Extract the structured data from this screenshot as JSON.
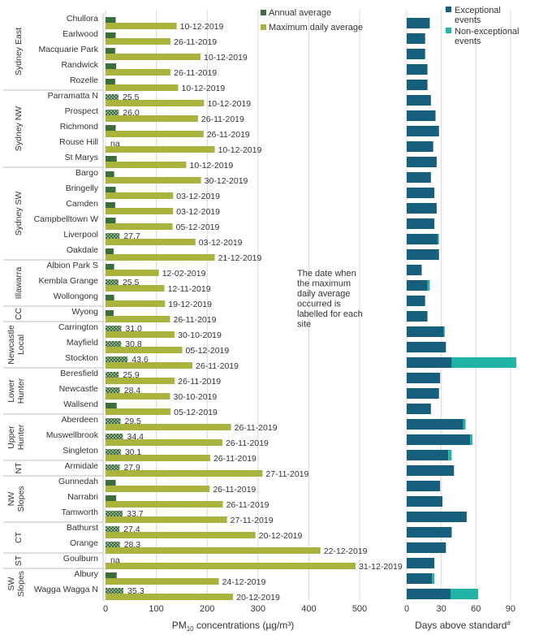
{
  "chart_data": [
    {
      "type": "bar",
      "orientation": "horizontal",
      "xlabel_main": "PM",
      "xlabel_sub": "10",
      "xlabel_rest": " concentrations (µg/m³)",
      "xlim": [
        0,
        500
      ],
      "xticks": [
        0,
        100,
        200,
        300,
        400,
        500
      ],
      "legend": [
        "Annual average",
        "Maximum daily average"
      ],
      "annotation": [
        "The date when",
        "the maximum",
        "daily average",
        "occurred is",
        "labelled for each",
        "site"
      ],
      "colors": {
        "annual": "#3c6e3c",
        "annual_pattern_fg": "#c8d8c8",
        "max": "#aab43c",
        "grid": "#d9d9d9",
        "text": "#333333"
      },
      "sites": [
        {
          "name": "Chullora",
          "annual": 20,
          "annual_label": "",
          "max": 140,
          "date": "10-12-2019"
        },
        {
          "name": "Earlwood",
          "annual": 20,
          "annual_label": "",
          "max": 128,
          "date": "26-11-2019"
        },
        {
          "name": "Macquarie Park",
          "annual": 19,
          "annual_label": "",
          "max": 187,
          "date": "10-12-2019"
        },
        {
          "name": "Randwick",
          "annual": 21,
          "annual_label": "",
          "max": 128,
          "date": "26-11-2019"
        },
        {
          "name": "Rozelle",
          "annual": 19,
          "annual_label": "",
          "max": 143,
          "date": "10-12-2019"
        },
        {
          "name": "Parramatta N",
          "annual": 25.5,
          "annual_label": "25.5",
          "max": 194,
          "date": "10-12-2019"
        },
        {
          "name": "Prospect",
          "annual": 26.0,
          "annual_label": "26.0",
          "max": 182,
          "date": "26-11-2019"
        },
        {
          "name": "Richmond",
          "annual": 20,
          "annual_label": "",
          "max": 193,
          "date": "26-11-2019"
        },
        {
          "name": "Rouse Hill",
          "annual": null,
          "annual_label": "na",
          "max": 215,
          "date": "10-12-2019"
        },
        {
          "name": "St Marys",
          "annual": 22,
          "annual_label": "",
          "max": 159,
          "date": "10-12-2019"
        },
        {
          "name": "Bargo",
          "annual": 17,
          "annual_label": "",
          "max": 188,
          "date": "30-12-2019"
        },
        {
          "name": "Bringelly",
          "annual": 20,
          "annual_label": "",
          "max": 133,
          "date": "03-12-2019"
        },
        {
          "name": "Camden",
          "annual": 19,
          "annual_label": "",
          "max": 133,
          "date": "03-12-2019"
        },
        {
          "name": "Campbelltown W",
          "annual": 20,
          "annual_label": "",
          "max": 132,
          "date": "05-12-2019"
        },
        {
          "name": "Liverpool",
          "annual": 27.7,
          "annual_label": "27.7",
          "max": 177,
          "date": "03-12-2019"
        },
        {
          "name": "Oakdale",
          "annual": 16,
          "annual_label": "",
          "max": 215,
          "date": "21-12-2019"
        },
        {
          "name": "Albion Park S",
          "annual": 17,
          "annual_label": "",
          "max": 105,
          "date": "12-02-2019"
        },
        {
          "name": "Kembla Grange",
          "annual": 25.5,
          "annual_label": "25.5",
          "max": 116,
          "date": "12-11-2019"
        },
        {
          "name": "Wollongong",
          "annual": 17,
          "annual_label": "",
          "max": 117,
          "date": "19-12-2019"
        },
        {
          "name": "Wyong",
          "annual": 16,
          "annual_label": "",
          "max": 127,
          "date": "26-11-2019"
        },
        {
          "name": "Carrington",
          "annual": 31.0,
          "annual_label": "31.0",
          "max": 136,
          "date": "30-10-2019"
        },
        {
          "name": "Mayfield",
          "annual": 30.8,
          "annual_label": "30.8",
          "max": 151,
          "date": "05-12-2019"
        },
        {
          "name": "Stockton",
          "annual": 43.6,
          "annual_label": "43.6",
          "max": 171,
          "date": "26-11-2019"
        },
        {
          "name": "Beresfield",
          "annual": 25.9,
          "annual_label": "25.9",
          "max": 136,
          "date": "26-11-2019"
        },
        {
          "name": "Newcastle",
          "annual": 28.4,
          "annual_label": "28.4",
          "max": 127,
          "date": "30-10-2019"
        },
        {
          "name": "Wallsend",
          "annual": 22,
          "annual_label": "",
          "max": 128,
          "date": "05-12-2019"
        },
        {
          "name": "Aberdeen",
          "annual": 29.5,
          "annual_label": "29.5",
          "max": 247,
          "date": "26-11-2019"
        },
        {
          "name": "Muswellbrook",
          "annual": 34.4,
          "annual_label": "34.4",
          "max": 230,
          "date": "26-11-2019"
        },
        {
          "name": "Singleton",
          "annual": 30.1,
          "annual_label": "30.1",
          "max": 206,
          "date": "26-11-2019"
        },
        {
          "name": "Armidale",
          "annual": 27.9,
          "annual_label": "27.9",
          "max": 309,
          "date": "27-11-2019"
        },
        {
          "name": "Gunnedah",
          "annual": 20,
          "annual_label": "",
          "max": 205,
          "date": "26-11-2019"
        },
        {
          "name": "Narrabri",
          "annual": 21,
          "annual_label": "",
          "max": 231,
          "date": "26-11-2019"
        },
        {
          "name": "Tamworth",
          "annual": 33.7,
          "annual_label": "33.7",
          "max": 239,
          "date": "27-11-2019"
        },
        {
          "name": "Bathurst",
          "annual": 27.4,
          "annual_label": "27.4",
          "max": 295,
          "date": "20-12-2019"
        },
        {
          "name": "Orange",
          "annual": 28.3,
          "annual_label": "28.3",
          "max": 423,
          "date": "22-12-2019"
        },
        {
          "name": "Goulburn",
          "annual": null,
          "annual_label": "na",
          "max": 492,
          "date": "31-12-2019"
        },
        {
          "name": "Albury",
          "annual": 22,
          "annual_label": "",
          "max": 223,
          "date": "24-12-2019"
        },
        {
          "name": "Wagga Wagga N",
          "annual": 35.3,
          "annual_label": "35.3",
          "max": 251,
          "date": "20-12-2019"
        }
      ],
      "regions": [
        {
          "name": [
            "Sydney East"
          ],
          "start": 0,
          "end": 4
        },
        {
          "name": [
            "Sydney NW"
          ],
          "start": 5,
          "end": 9
        },
        {
          "name": [
            "Sydney SW"
          ],
          "start": 10,
          "end": 15
        },
        {
          "name": [
            "Illawarra"
          ],
          "start": 16,
          "end": 18
        },
        {
          "name": [
            "CC"
          ],
          "start": 19,
          "end": 19
        },
        {
          "name": [
            "Newcastle",
            "Local"
          ],
          "start": 20,
          "end": 22
        },
        {
          "name": [
            "Lower",
            "Hunter"
          ],
          "start": 23,
          "end": 25
        },
        {
          "name": [
            "Upper",
            "Hunter"
          ],
          "start": 26,
          "end": 28
        },
        {
          "name": [
            "NT"
          ],
          "start": 29,
          "end": 29
        },
        {
          "name": [
            "NW",
            "Slopes"
          ],
          "start": 30,
          "end": 32
        },
        {
          "name": [
            "CT"
          ],
          "start": 33,
          "end": 34
        },
        {
          "name": [
            "ST"
          ],
          "start": 35,
          "end": 35
        },
        {
          "name": [
            "SW",
            "Slopes"
          ],
          "start": 36,
          "end": 37
        }
      ]
    },
    {
      "type": "bar",
      "orientation": "horizontal",
      "stacked": true,
      "xlabel": "Days above standard",
      "xlabel_sup": "#",
      "xlim": [
        0,
        95
      ],
      "xticks": [
        0,
        30,
        60,
        90
      ],
      "legend": [
        [
          "Exceptional",
          "events"
        ],
        [
          "Non-exceptional",
          "events"
        ]
      ],
      "colors": {
        "exceptional": "#17607d",
        "non_exceptional": "#22b5a5"
      },
      "exceptional": [
        20,
        16,
        16,
        18,
        18,
        21,
        25,
        28,
        23,
        26,
        21,
        24,
        26,
        24,
        27,
        28,
        13,
        18,
        16,
        18,
        32,
        34,
        39,
        29,
        28,
        21,
        49,
        55,
        36,
        41,
        29,
        31,
        52,
        39,
        34,
        24,
        22,
        38
      ],
      "non_exceptional": [
        0,
        0,
        0,
        0,
        0,
        0,
        0,
        0,
        0,
        0,
        0,
        0,
        0,
        0,
        1,
        0,
        0,
        2,
        0,
        0,
        1,
        0,
        56,
        0,
        0,
        0,
        2,
        2,
        3,
        0,
        0,
        0,
        0,
        0,
        0,
        0,
        2,
        24
      ]
    }
  ]
}
